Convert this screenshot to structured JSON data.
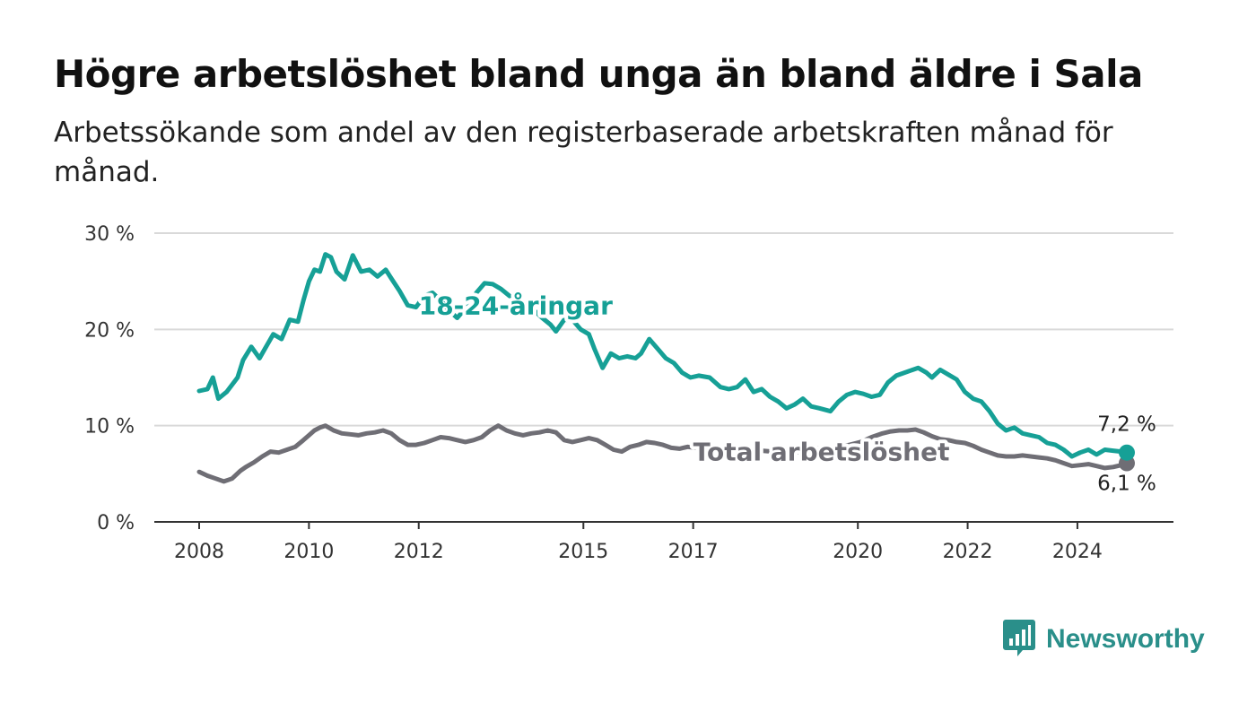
{
  "header": {
    "title": "Högre arbetslöshet bland unga än bland äldre i Sala",
    "subtitle": "Arbetssökande som andel av den registerbaserade arbetskraften månad för månad."
  },
  "brand": {
    "name": "Newsworthy",
    "color": "#2a8f8a",
    "icon": "bar-chart-logo-icon"
  },
  "chart_data": {
    "type": "line",
    "ylim": [
      0,
      30
    ],
    "xlim": [
      2008.0,
      2024.9
    ],
    "yticks": [
      {
        "value": 0,
        "label": "0 %"
      },
      {
        "value": 10,
        "label": "10 %"
      },
      {
        "value": 20,
        "label": "20 %"
      },
      {
        "value": 30,
        "label": "30 %"
      }
    ],
    "xticks": [
      {
        "value": 2008,
        "label": "2008"
      },
      {
        "value": 2010,
        "label": "2010"
      },
      {
        "value": 2012,
        "label": "2012"
      },
      {
        "value": 2015,
        "label": "2015"
      },
      {
        "value": 2017,
        "label": "2017"
      },
      {
        "value": 2020,
        "label": "2020"
      },
      {
        "value": 2022,
        "label": "2022"
      },
      {
        "value": 2024,
        "label": "2024"
      }
    ],
    "grid": true,
    "series": [
      {
        "name": "18-24-åringar",
        "color": "#16a096",
        "end_label": "7,2 %",
        "x": [
          2008.0,
          2008.15,
          2008.25,
          2008.35,
          2008.5,
          2008.7,
          2008.8,
          2008.95,
          2009.1,
          2009.2,
          2009.35,
          2009.5,
          2009.65,
          2009.8,
          2009.9,
          2010.0,
          2010.1,
          2010.2,
          2010.3,
          2010.4,
          2010.5,
          2010.65,
          2010.8,
          2010.95,
          2011.1,
          2011.25,
          2011.4,
          2011.5,
          2011.65,
          2011.8,
          2011.95,
          2012.1,
          2012.25,
          2012.4,
          2012.55,
          2012.7,
          2012.9,
          2013.05,
          2013.2,
          2013.35,
          2013.5,
          2013.65,
          2013.8,
          2013.95,
          2014.1,
          2014.25,
          2014.4,
          2014.5,
          2014.65,
          2014.8,
          2014.95,
          2015.1,
          2015.2,
          2015.35,
          2015.5,
          2015.65,
          2015.8,
          2015.95,
          2016.05,
          2016.2,
          2016.35,
          2016.5,
          2016.65,
          2016.8,
          2016.95,
          2017.1,
          2017.3,
          2017.5,
          2017.65,
          2017.8,
          2017.95,
          2018.1,
          2018.25,
          2018.4,
          2018.55,
          2018.7,
          2018.85,
          2019.0,
          2019.15,
          2019.3,
          2019.5,
          2019.65,
          2019.8,
          2019.95,
          2020.1,
          2020.25,
          2020.4,
          2020.55,
          2020.7,
          2020.85,
          2021.0,
          2021.1,
          2021.25,
          2021.35,
          2021.5,
          2021.65,
          2021.8,
          2021.95,
          2022.1,
          2022.25,
          2022.4,
          2022.55,
          2022.7,
          2022.85,
          2023.0,
          2023.15,
          2023.3,
          2023.45,
          2023.6,
          2023.75,
          2023.9,
          2024.05,
          2024.2,
          2024.35,
          2024.5,
          2024.65,
          2024.8,
          2024.9
        ],
        "y": [
          13.6,
          13.8,
          15.0,
          12.8,
          13.5,
          15.0,
          16.8,
          18.2,
          17.0,
          18.0,
          19.5,
          19.0,
          21.0,
          20.8,
          23.0,
          25.0,
          26.2,
          26.0,
          27.8,
          27.5,
          26.0,
          25.2,
          27.7,
          26.0,
          26.2,
          25.5,
          26.2,
          25.3,
          24.0,
          22.5,
          22.3,
          23.5,
          23.8,
          23.0,
          22.0,
          21.2,
          22.5,
          23.8,
          24.8,
          24.7,
          24.2,
          23.5,
          23.0,
          22.5,
          22.0,
          21.2,
          20.5,
          19.8,
          21.0,
          21.0,
          20.0,
          19.5,
          18.0,
          16.0,
          17.5,
          17.0,
          17.2,
          17.0,
          17.5,
          19.0,
          18.0,
          17.0,
          16.5,
          15.5,
          15.0,
          15.2,
          15.0,
          14.0,
          13.8,
          14.0,
          14.8,
          13.5,
          13.8,
          13.0,
          12.5,
          11.8,
          12.2,
          12.8,
          12.0,
          11.8,
          11.5,
          12.5,
          13.2,
          13.5,
          13.3,
          13.0,
          13.2,
          14.5,
          15.2,
          15.5,
          15.8,
          16.0,
          15.5,
          15.0,
          15.8,
          15.3,
          14.8,
          13.5,
          12.8,
          12.5,
          11.5,
          10.2,
          9.5,
          9.8,
          9.2,
          9.0,
          8.8,
          8.2,
          8.0,
          7.5,
          6.8,
          7.2,
          7.5,
          7.0,
          7.5,
          7.4,
          7.3,
          7.2
        ]
      },
      {
        "name": "Total arbetslöshet",
        "color": "#6f6e75",
        "end_label": "6,1 %",
        "x": [
          2008.0,
          2008.15,
          2008.3,
          2008.45,
          2008.6,
          2008.75,
          2008.85,
          2009.0,
          2009.15,
          2009.3,
          2009.45,
          2009.6,
          2009.75,
          2009.9,
          2010.0,
          2010.1,
          2010.2,
          2010.3,
          2010.45,
          2010.6,
          2010.75,
          2010.9,
          2011.05,
          2011.2,
          2011.35,
          2011.5,
          2011.65,
          2011.8,
          2011.95,
          2012.1,
          2012.25,
          2012.4,
          2012.55,
          2012.7,
          2012.85,
          2013.0,
          2013.15,
          2013.3,
          2013.45,
          2013.6,
          2013.75,
          2013.9,
          2014.05,
          2014.2,
          2014.35,
          2014.5,
          2014.65,
          2014.8,
          2014.95,
          2015.1,
          2015.25,
          2015.4,
          2015.55,
          2015.7,
          2015.85,
          2016.0,
          2016.15,
          2016.3,
          2016.45,
          2016.6,
          2016.75,
          2016.9,
          2017.05,
          2017.25,
          2017.45,
          2017.65,
          2017.85,
          2018.05,
          2018.25,
          2018.45,
          2018.65,
          2018.85,
          2019.05,
          2019.25,
          2019.45,
          2019.65,
          2019.85,
          2020.05,
          2020.25,
          2020.45,
          2020.6,
          2020.75,
          2020.9,
          2021.05,
          2021.2,
          2021.35,
          2021.5,
          2021.65,
          2021.8,
          2021.95,
          2022.1,
          2022.25,
          2022.4,
          2022.55,
          2022.7,
          2022.85,
          2023.0,
          2023.15,
          2023.3,
          2023.45,
          2023.6,
          2023.75,
          2023.9,
          2024.05,
          2024.2,
          2024.35,
          2024.5,
          2024.65,
          2024.8,
          2024.9
        ],
        "y": [
          5.2,
          4.8,
          4.5,
          4.2,
          4.5,
          5.3,
          5.7,
          6.2,
          6.8,
          7.3,
          7.2,
          7.5,
          7.8,
          8.5,
          9.0,
          9.5,
          9.8,
          10.0,
          9.5,
          9.2,
          9.1,
          9.0,
          9.2,
          9.3,
          9.5,
          9.2,
          8.5,
          8.0,
          8.0,
          8.2,
          8.5,
          8.8,
          8.7,
          8.5,
          8.3,
          8.5,
          8.8,
          9.5,
          10.0,
          9.5,
          9.2,
          9.0,
          9.2,
          9.3,
          9.5,
          9.3,
          8.5,
          8.3,
          8.5,
          8.7,
          8.5,
          8.0,
          7.5,
          7.3,
          7.8,
          8.0,
          8.3,
          8.2,
          8.0,
          7.7,
          7.6,
          7.8,
          7.7,
          7.6,
          7.8,
          7.7,
          7.5,
          7.5,
          7.4,
          7.3,
          7.3,
          7.2,
          7.4,
          7.6,
          7.7,
          7.8,
          8.0,
          8.3,
          8.8,
          9.2,
          9.4,
          9.5,
          9.5,
          9.6,
          9.3,
          8.9,
          8.6,
          8.5,
          8.3,
          8.2,
          7.9,
          7.5,
          7.2,
          6.9,
          6.8,
          6.8,
          6.9,
          6.8,
          6.7,
          6.6,
          6.4,
          6.1,
          5.8,
          5.9,
          6.0,
          5.8,
          5.6,
          5.7,
          5.9,
          6.1
        ]
      }
    ]
  }
}
